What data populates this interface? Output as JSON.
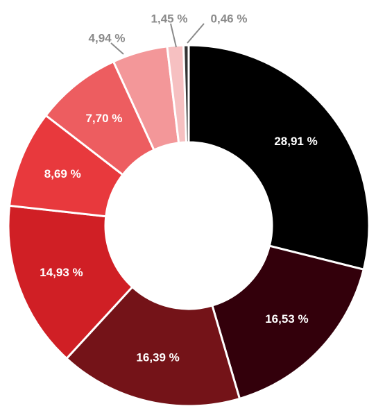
{
  "chart_data": {
    "type": "pie",
    "variant": "donut",
    "legend": "none",
    "slices": [
      {
        "value": 28.91,
        "label": "28,91 %",
        "color": "#000000"
      },
      {
        "value": 16.53,
        "label": "16,53 %",
        "color": "#33000b"
      },
      {
        "value": 16.39,
        "label": "16,39 %",
        "color": "#741318"
      },
      {
        "value": 14.93,
        "label": "14,93 %",
        "color": "#d01f25"
      },
      {
        "value": 8.69,
        "label": "8,69 %",
        "color": "#e8393d"
      },
      {
        "value": 7.7,
        "label": "7,70 %",
        "color": "#ed5d60"
      },
      {
        "value": 4.94,
        "label": "4,94 %",
        "color": "#f39799"
      },
      {
        "value": 1.45,
        "label": "1,45 %",
        "color": "#f6c0c1"
      },
      {
        "value": 0.46,
        "label": "0,46 %",
        "color": "#333333"
      }
    ]
  }
}
